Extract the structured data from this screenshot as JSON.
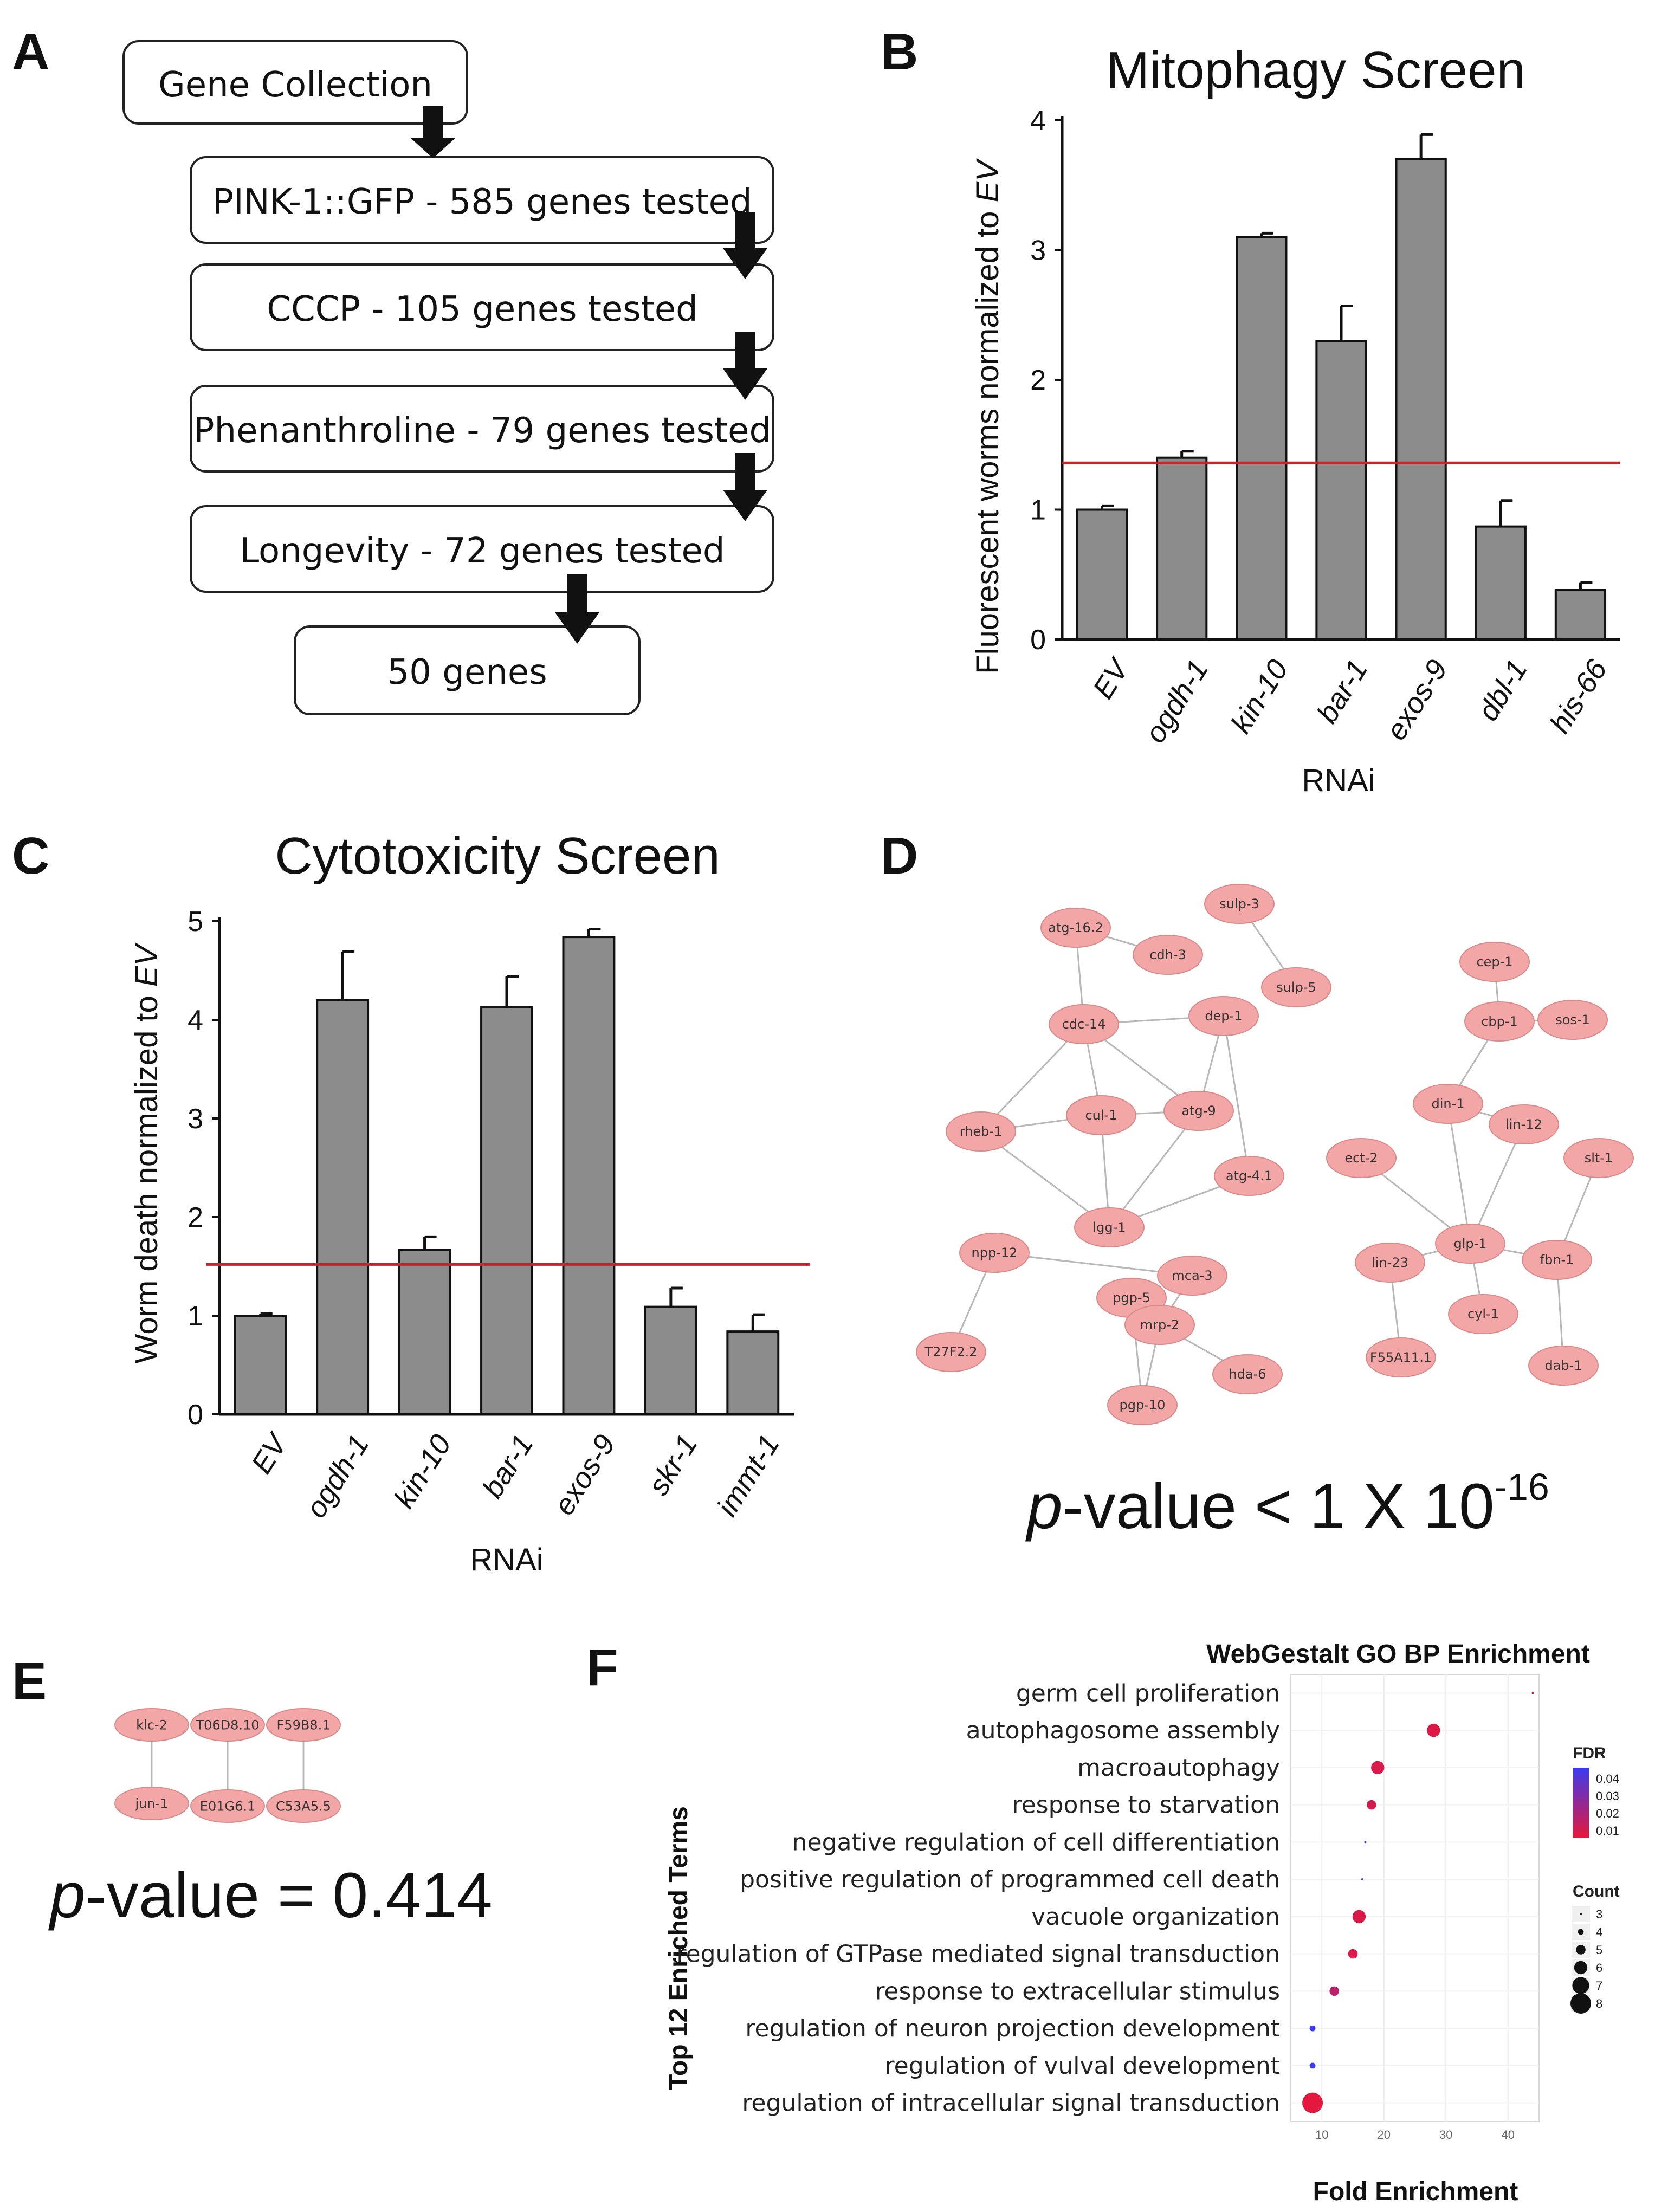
{
  "panels": {
    "a": "A",
    "b": "B",
    "c": "C",
    "d": "D",
    "e": "E",
    "f": "F"
  },
  "flowchart": {
    "steps": [
      "Gene Collection",
      "PINK-1::GFP - 585 genes tested",
      "CCCP - 105 genes tested",
      "Phenanthroline - 79 genes tested",
      "Longevity - 72 genes tested",
      "50 genes"
    ]
  },
  "network_d": {
    "nodes": [
      "atg-16.2",
      "cdh-3",
      "sulp-3",
      "sulp-5",
      "dep-1",
      "cdc-14",
      "cul-1",
      "atg-9",
      "rheb-1",
      "atg-4.1",
      "lgg-1",
      "npp-12",
      "mca-3",
      "pgp-5",
      "mrp-2",
      "T27F2.2",
      "hda-6",
      "pgp-10",
      "cep-1",
      "cbp-1",
      "sos-1",
      "din-1",
      "lin-12",
      "ect-2",
      "slt-1",
      "glp-1",
      "fbn-1",
      "lin-23",
      "cyl-1",
      "F55A11.1",
      "dab-1"
    ],
    "pvalue_prefix": "p",
    "pvalue_text": "-value < 1 X 10",
    "pvalue_exp": "-16"
  },
  "network_e": {
    "nodes": [
      "klc-2",
      "T06D8.10",
      "F59B8.1",
      "jun-1",
      "E01G6.1",
      "C53A5.5"
    ],
    "pvalue_prefix": "p",
    "pvalue_text": "-value = 0.414"
  },
  "chart_data": [
    {
      "id": "mitophagy",
      "type": "bar",
      "title": "Mitophagy Screen",
      "categories": [
        "EV",
        "ogdh-1",
        "kin-10",
        "bar-1",
        "exos-9",
        "dbl-1",
        "his-66"
      ],
      "values": [
        1.0,
        1.4,
        3.1,
        2.3,
        3.7,
        0.87,
        0.38
      ],
      "errors": [
        0.03,
        0.05,
        0.03,
        0.27,
        0.19,
        0.2,
        0.06
      ],
      "threshold": 1.36,
      "xlabel": "RNAi",
      "ylabel": "Fluorescent worms normalized to EV",
      "ylabel_plain": "Fluorescent worms normalized to ",
      "ylabel_italic": "EV",
      "ylim": [
        0,
        4
      ],
      "yticks": [
        0,
        1,
        2,
        3,
        4
      ],
      "colors": {
        "bar": "#8c8c8c",
        "threshold": "#c0272d"
      }
    },
    {
      "id": "cytotoxicity",
      "type": "bar",
      "title": "Cytotoxicity Screen",
      "categories": [
        "EV",
        "ogdh-1",
        "kin-10",
        "bar-1",
        "exos-9",
        "skr-1",
        "immt-1"
      ],
      "values": [
        1.0,
        4.2,
        1.67,
        4.13,
        4.84,
        1.09,
        0.84
      ],
      "errors": [
        0.02,
        0.49,
        0.13,
        0.31,
        0.08,
        0.19,
        0.17
      ],
      "threshold": 1.52,
      "xlabel": "RNAi",
      "ylabel": "Worm death normalized to EV",
      "ylabel_plain": "Worm death normalized to ",
      "ylabel_italic": "EV",
      "ylim": [
        0,
        5
      ],
      "yticks": [
        0,
        1,
        2,
        3,
        4,
        5
      ],
      "colors": {
        "bar": "#8c8c8c",
        "threshold": "#c0272d"
      }
    },
    {
      "id": "go_enrichment",
      "type": "scatter",
      "title": "WebGestalt GO BP Enrichment",
      "xlabel": "Fold Enrichment",
      "ylabel": "Top 12 Enriched Terms",
      "xlim": [
        5,
        45
      ],
      "xticks": [
        10,
        20,
        30,
        40
      ],
      "terms": [
        "germ cell proliferation",
        "autophagosome assembly",
        "macroautophagy",
        "response to starvation",
        "negative regulation of cell differentiation",
        "positive regulation of programmed cell death",
        "vacuole organization",
        "regulation of GTPase mediated signal transduction",
        "response to extracellular stimulus",
        "regulation of neuron projection development",
        "regulation of vulval development",
        "regulation of intracellular signal transduction"
      ],
      "fold_enrichment": [
        44,
        28,
        19,
        18,
        17,
        16.5,
        16,
        15,
        12,
        8.5,
        8.5,
        8.5
      ],
      "fdr": [
        0.005,
        0.003,
        0.004,
        0.005,
        0.04,
        0.045,
        0.003,
        0.004,
        0.012,
        0.045,
        0.045,
        0.001
      ],
      "count": [
        3,
        6,
        6,
        5,
        3,
        3,
        6,
        5,
        5,
        4,
        4,
        8
      ],
      "legend": {
        "fdr_title": "FDR",
        "fdr_ticks": [
          "0.04",
          "0.03",
          "0.02",
          "0.01"
        ],
        "count_title": "Count",
        "count_ticks": [
          "3",
          "4",
          "5",
          "6",
          "7",
          "8"
        ],
        "color_low": "#3b3bf0",
        "color_high": "#e8173a"
      }
    }
  ]
}
